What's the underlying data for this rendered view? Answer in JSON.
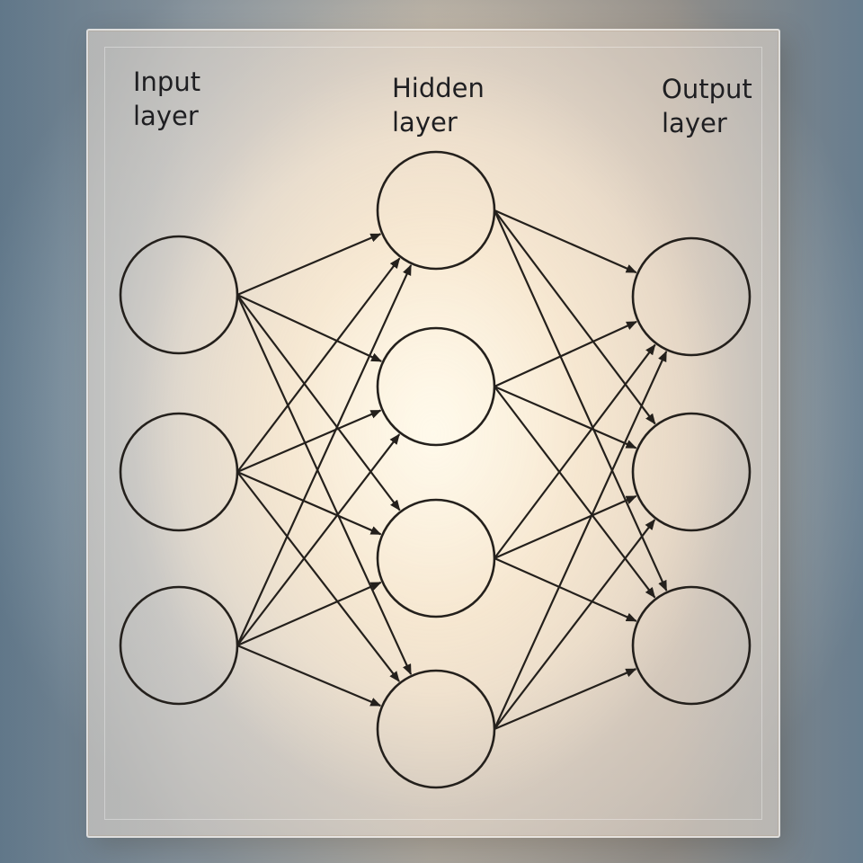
{
  "labels": {
    "input": "Input\nlayer",
    "hidden": "Hidden\nlayer",
    "output": "Output\nlayer"
  },
  "network": {
    "layers": [
      {
        "id": "input",
        "neurons": 3
      },
      {
        "id": "hidden",
        "neurons": 4
      },
      {
        "id": "output",
        "neurons": 3
      }
    ],
    "connections": "fully-connected",
    "direction": "left-to-right",
    "arrowheads": true
  },
  "colors": {
    "stroke": "#24201c",
    "label": "#1f1f22"
  }
}
